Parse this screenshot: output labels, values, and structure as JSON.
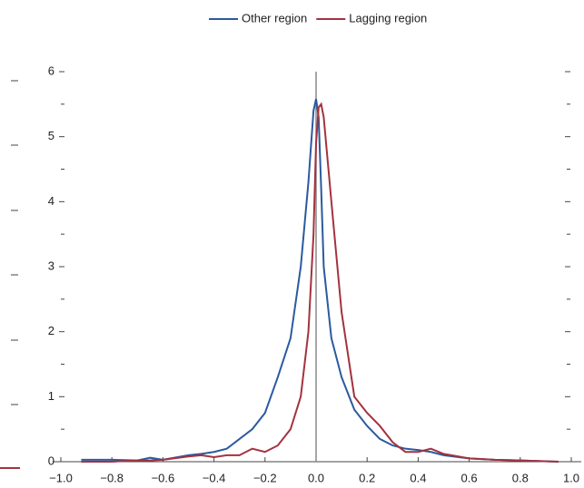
{
  "chart_data": {
    "type": "line",
    "x": [
      -0.92,
      -0.8,
      -0.7,
      -0.65,
      -0.6,
      -0.5,
      -0.45,
      -0.4,
      -0.35,
      -0.3,
      -0.25,
      -0.2,
      -0.15,
      -0.1,
      -0.06,
      -0.03,
      -0.01,
      0,
      0.01,
      0.02,
      0.03,
      0.06,
      0.1,
      0.15,
      0.2,
      0.25,
      0.3,
      0.35,
      0.4,
      0.45,
      0.5,
      0.6,
      0.7,
      0.8,
      0.95
    ],
    "series": [
      {
        "name": "Other region",
        "color": "#2b5a9e",
        "values": [
          0.03,
          0.03,
          0.02,
          0.06,
          0.03,
          0.1,
          0.12,
          0.15,
          0.2,
          0.35,
          0.5,
          0.75,
          1.3,
          1.9,
          3.0,
          4.3,
          5.4,
          5.58,
          5.3,
          4.2,
          3.0,
          1.9,
          1.3,
          0.8,
          0.55,
          0.35,
          0.25,
          0.2,
          0.18,
          0.15,
          0.1,
          0.05,
          0.03,
          0.02,
          0
        ]
      },
      {
        "name": "Lagging region",
        "color": "#a3323f",
        "values": [
          0,
          0,
          0.02,
          0.02,
          0.03,
          0.08,
          0.1,
          0.07,
          0.1,
          0.1,
          0.2,
          0.15,
          0.25,
          0.5,
          1.0,
          2.0,
          3.5,
          4.9,
          5.45,
          5.5,
          5.3,
          4.0,
          2.3,
          1.0,
          0.75,
          0.55,
          0.3,
          0.15,
          0.15,
          0.2,
          0.12,
          0.05,
          0.03,
          0.02,
          0
        ]
      }
    ],
    "xlim": [
      -1.0,
      1.0
    ],
    "xticks": [
      {
        "value": -1.0,
        "label": "−1.0"
      },
      {
        "value": -0.8,
        "label": "−0.8"
      },
      {
        "value": -0.6,
        "label": "−0.6"
      },
      {
        "value": -0.4,
        "label": "−0.4"
      },
      {
        "value": -0.2,
        "label": "−0.2"
      },
      {
        "value": 0,
        "label": "0.0"
      },
      {
        "value": 0.2,
        "label": "0.2"
      },
      {
        "value": 0.4,
        "label": "0.4"
      },
      {
        "value": 0.6,
        "label": "0.6"
      },
      {
        "value": 0.8,
        "label": "0.8"
      },
      {
        "value": 1.0,
        "label": "1.0"
      }
    ],
    "ylim": [
      0,
      6
    ],
    "yticks": [
      0,
      1,
      2,
      3,
      4,
      5,
      6
    ],
    "legend": "top"
  }
}
